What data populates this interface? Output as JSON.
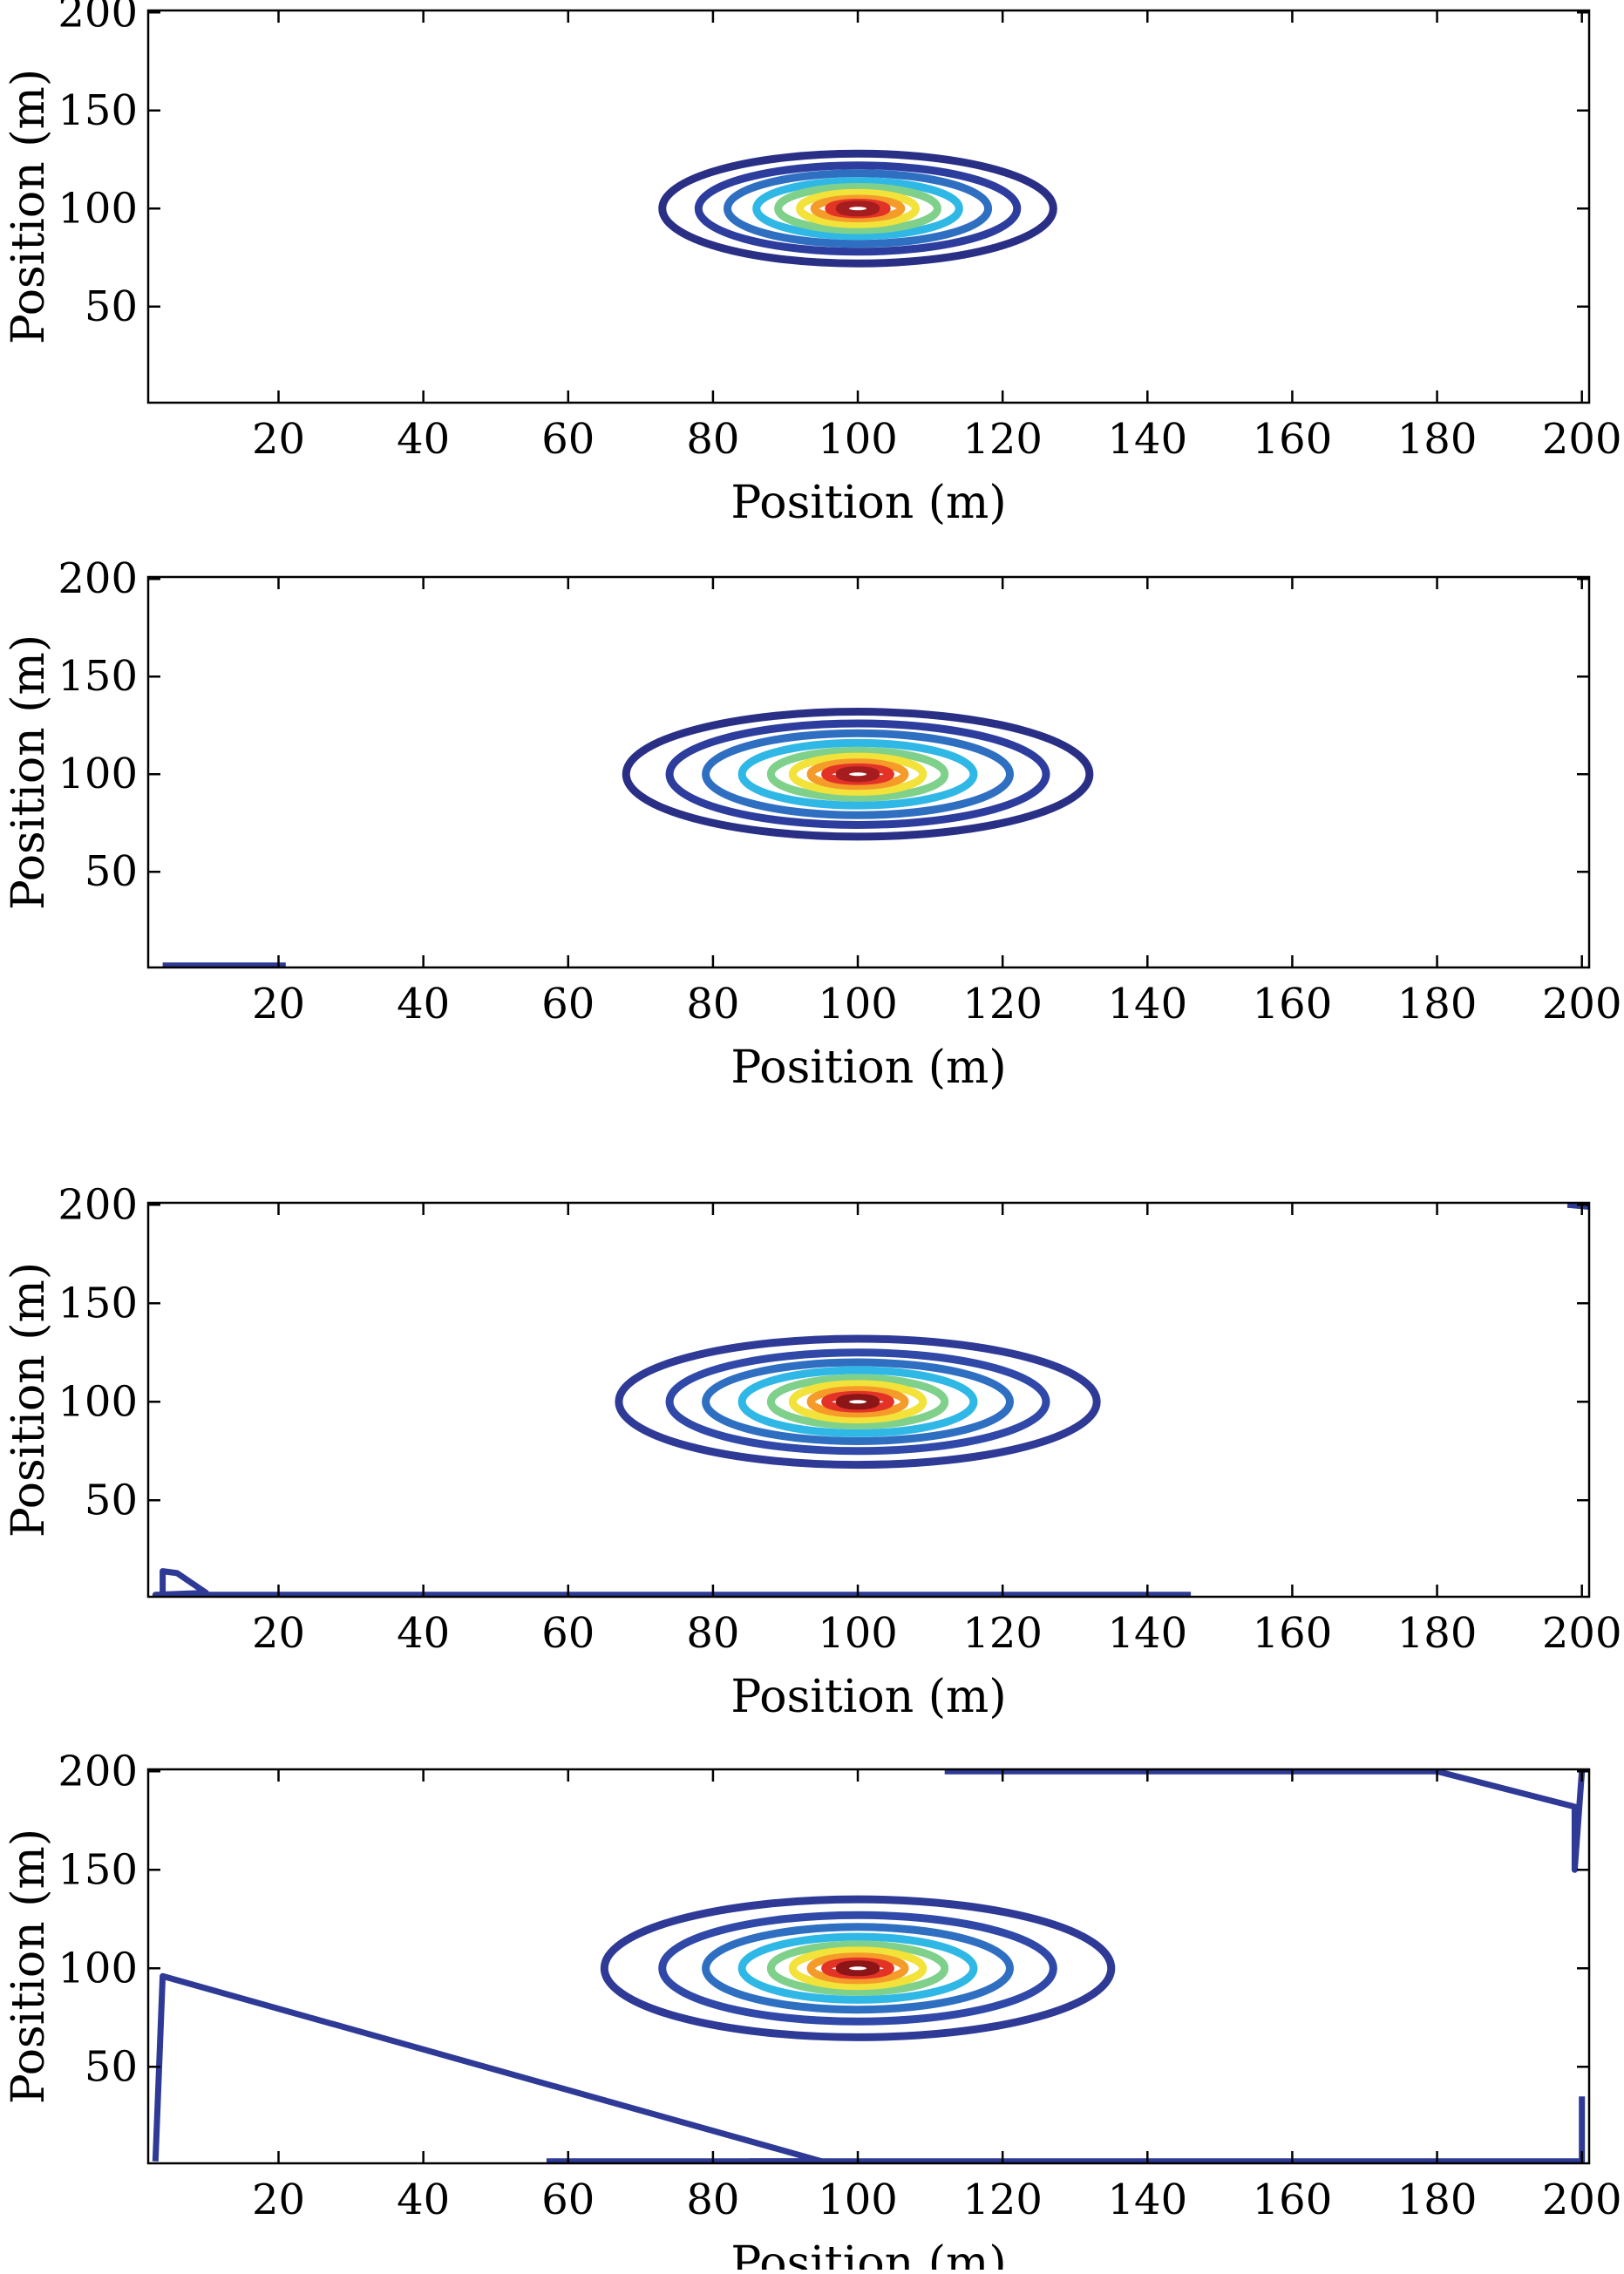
{
  "chart_data": [
    {
      "type": "contour",
      "xlabel": "Position (m)",
      "ylabel": "Position (m)",
      "xlim": [
        2,
        201
      ],
      "ylim": [
        1,
        201
      ],
      "xticks": [
        "20",
        "40",
        "60",
        "80",
        "100",
        "120",
        "140",
        "160",
        "180",
        "200"
      ],
      "yticks": [
        "50",
        "100",
        "150",
        "200"
      ],
      "center": [
        100,
        100
      ],
      "contour_levels": [
        {
          "rx": 27,
          "ry": 28,
          "color": "#2a2f86"
        },
        {
          "rx": 22,
          "ry": 22,
          "color": "#2d3d9e"
        },
        {
          "rx": 18,
          "ry": 18,
          "color": "#2f6fc2"
        },
        {
          "rx": 14,
          "ry": 14,
          "color": "#2fb8e6"
        },
        {
          "rx": 11,
          "ry": 11,
          "color": "#7fd08a"
        },
        {
          "rx": 8,
          "ry": 8,
          "color": "#f2e23a"
        },
        {
          "rx": 6,
          "ry": 5,
          "color": "#f59b2a"
        },
        {
          "rx": 4,
          "ry": 3,
          "color": "#e33326"
        },
        {
          "rx": 2.5,
          "ry": 2,
          "color": "#a51d1f"
        }
      ],
      "outlier_paths": []
    },
    {
      "type": "contour",
      "xlabel": "Position (m)",
      "ylabel": "Position (m)",
      "xlim": [
        2,
        201
      ],
      "ylim": [
        1,
        201
      ],
      "xticks": [
        "20",
        "40",
        "60",
        "80",
        "100",
        "120",
        "140",
        "160",
        "180",
        "200"
      ],
      "yticks": [
        "50",
        "100",
        "150",
        "200"
      ],
      "center": [
        100,
        100
      ],
      "contour_levels": [
        {
          "rx": 32,
          "ry": 32,
          "color": "#2a2f86"
        },
        {
          "rx": 26,
          "ry": 26,
          "color": "#2d3d9e"
        },
        {
          "rx": 21,
          "ry": 21,
          "color": "#2f6fc2"
        },
        {
          "rx": 16,
          "ry": 16,
          "color": "#2fb8e6"
        },
        {
          "rx": 12,
          "ry": 12,
          "color": "#7fd08a"
        },
        {
          "rx": 9,
          "ry": 9,
          "color": "#f2e23a"
        },
        {
          "rx": 6.5,
          "ry": 6,
          "color": "#f59b2a"
        },
        {
          "rx": 4.5,
          "ry": 3.5,
          "color": "#e33326"
        },
        {
          "rx": 2.5,
          "ry": 2,
          "color": "#a51d1f"
        }
      ],
      "outlier_paths": [
        [
          [
            4,
            2
          ],
          [
            21,
            2
          ]
        ]
      ]
    },
    {
      "type": "contour",
      "xlabel": "Position (m)",
      "ylabel": "Position (m)",
      "xlim": [
        2,
        201
      ],
      "ylim": [
        1,
        201
      ],
      "xticks": [
        "20",
        "40",
        "60",
        "80",
        "100",
        "120",
        "140",
        "160",
        "180",
        "200"
      ],
      "yticks": [
        "50",
        "100",
        "150",
        "200"
      ],
      "center": [
        100,
        100
      ],
      "contour_levels": [
        {
          "rx": 33,
          "ry": 32,
          "color": "#2e3a96"
        },
        {
          "rx": 26,
          "ry": 25,
          "color": "#3048a8"
        },
        {
          "rx": 21,
          "ry": 20,
          "color": "#2f6fc2"
        },
        {
          "rx": 16,
          "ry": 16,
          "color": "#2fb8e6"
        },
        {
          "rx": 12,
          "ry": 12,
          "color": "#7fd08a"
        },
        {
          "rx": 9,
          "ry": 9,
          "color": "#f2e23a"
        },
        {
          "rx": 6.5,
          "ry": 6,
          "color": "#f59b2a"
        },
        {
          "rx": 4.5,
          "ry": 3.5,
          "color": "#e33326"
        },
        {
          "rx": 2.5,
          "ry": 2,
          "color": "#8b1517"
        }
      ],
      "outlier_paths": [
        [
          [
            4,
            2
          ],
          [
            4,
            14
          ],
          [
            6,
            13
          ],
          [
            10,
            3
          ],
          [
            3,
            2
          ],
          [
            146,
            2
          ]
        ],
        [
          [
            198,
            200
          ],
          [
            201,
            199
          ]
        ]
      ]
    },
    {
      "type": "contour",
      "xlabel": "Position (m)",
      "ylabel": "Position (m)",
      "xlim": [
        2,
        201
      ],
      "ylim": [
        1,
        201
      ],
      "xticks": [
        "20",
        "40",
        "60",
        "80",
        "100",
        "120",
        "140",
        "160",
        "180",
        "200"
      ],
      "yticks": [
        "50",
        "100",
        "150",
        "200"
      ],
      "center": [
        100,
        100
      ],
      "contour_levels": [
        {
          "rx": 35,
          "ry": 35,
          "color": "#2e3a96"
        },
        {
          "rx": 27,
          "ry": 27,
          "color": "#3048a8"
        },
        {
          "rx": 21,
          "ry": 21,
          "color": "#2f6fc2"
        },
        {
          "rx": 16,
          "ry": 16,
          "color": "#2fb8e6"
        },
        {
          "rx": 12,
          "ry": 12,
          "color": "#7fd08a"
        },
        {
          "rx": 9,
          "ry": 9,
          "color": "#f2e23a"
        },
        {
          "rx": 6.5,
          "ry": 6,
          "color": "#f59b2a"
        },
        {
          "rx": 4.5,
          "ry": 3.5,
          "color": "#e33326"
        },
        {
          "rx": 2.5,
          "ry": 2,
          "color": "#8b1517"
        }
      ],
      "outlier_paths": [
        [
          [
            3,
            2
          ],
          [
            4,
            96
          ],
          [
            95,
            2
          ],
          [
            57,
            2
          ]
        ],
        [
          [
            112,
            200
          ],
          [
            180,
            200
          ],
          [
            199,
            182
          ],
          [
            199,
            150
          ],
          [
            200,
            200
          ]
        ],
        [
          [
            200,
            35
          ],
          [
            200,
            2
          ],
          [
            85,
            2
          ]
        ]
      ]
    }
  ]
}
